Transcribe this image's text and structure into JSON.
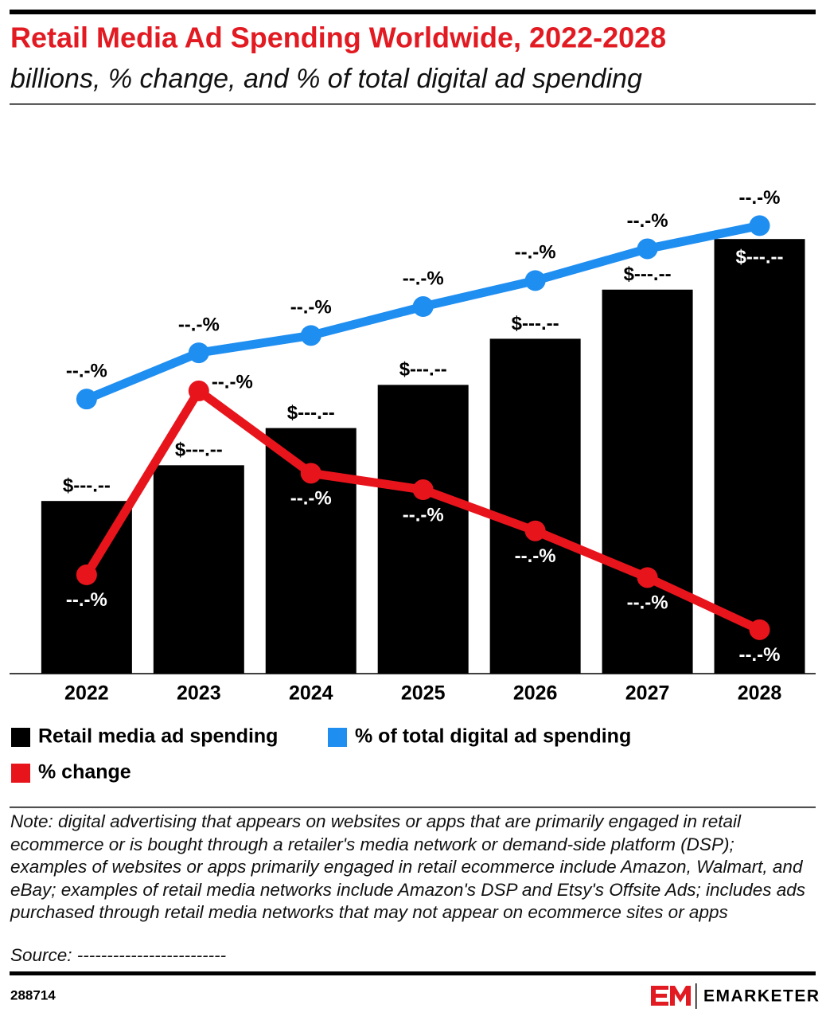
{
  "chart_data": {
    "type": "bar",
    "title": "Retail Media Ad Spending Worldwide, 2022-2028",
    "subtitle": "billions, % change, and % of total digital ad spending",
    "categories": [
      "2022",
      "2023",
      "2024",
      "2025",
      "2026",
      "2027",
      "2028"
    ],
    "ylim": [
      0,
      367
    ],
    "y2lim": [
      9.5,
      28.4
    ],
    "y3lim": [
      10.4,
      30.3
    ],
    "series": [
      {
        "name": "Retail media ad spending",
        "type": "bar",
        "color": "#000000",
        "values": [
          116,
          140,
          165,
          194,
          225,
          258,
          292
        ],
        "value_labels": [
          "$---.--",
          "$---.--",
          "$---.--",
          "$---.--",
          "$---.--",
          "$---.--",
          "$---.--"
        ]
      },
      {
        "name": "% of total digital ad spending",
        "type": "line",
        "axis": "y2",
        "color": "#1f8ef1",
        "values": [
          19.0,
          20.6,
          21.2,
          22.2,
          23.1,
          24.2,
          25.0
        ],
        "value_labels": [
          "--.-%",
          "--.-%",
          "--.-%",
          "--.-%",
          "--.-%",
          "--.-%",
          "--.-%"
        ]
      },
      {
        "name": "% change",
        "type": "line",
        "axis": "y3",
        "color": "#e8141c",
        "values": [
          14.0,
          20.7,
          17.7,
          17.1,
          15.6,
          13.9,
          12.0
        ],
        "value_labels": [
          "--.-%",
          "--.-%",
          "--.-%",
          "--.-%",
          "--.-%",
          "--.-%",
          "--.-%"
        ]
      }
    ],
    "legend_order": [
      0,
      1,
      2
    ],
    "note": "Note: digital advertising that appears on websites or apps that are primarily engaged in retail ecommerce or is bought through a retailer's media network or demand-side platform (DSP); examples of websites or apps primarily engaged in retail ecommerce include Amazon, Walmart, and eBay; examples of retail media networks include Amazon's DSP and Etsy's Offsite Ads; includes ads purchased through retail media networks that may not appear on ecommerce sites or apps",
    "source": "Source: -------------------------",
    "chart_id": "288714",
    "brand": "EMARKETER"
  }
}
